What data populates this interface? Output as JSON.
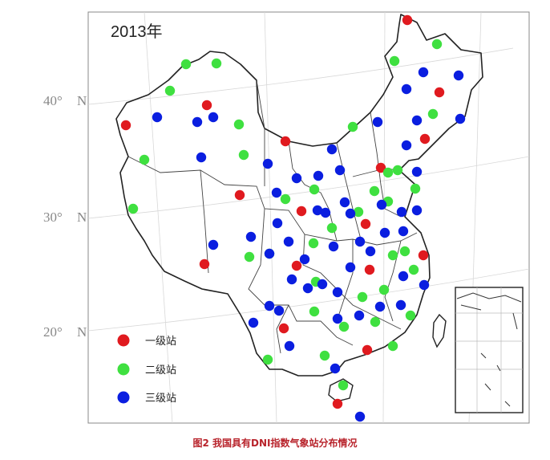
{
  "map": {
    "year_label": "2013年",
    "lat_labels": [
      {
        "deg": "40°",
        "dir": "N"
      },
      {
        "deg": "30°",
        "dir": "N"
      },
      {
        "deg": "20°",
        "dir": "N"
      }
    ],
    "legend": [
      {
        "label": "一级站",
        "color": "#e01a1f"
      },
      {
        "label": "二级站",
        "color": "#3fe040"
      },
      {
        "label": "三级站",
        "color": "#0a1ee0"
      }
    ],
    "stations": {
      "level1": [
        [
          508,
          25
        ],
        [
          548,
          115
        ],
        [
          530,
          173
        ],
        [
          258,
          131
        ],
        [
          157,
          156
        ],
        [
          356,
          176
        ],
        [
          299,
          243
        ],
        [
          376,
          263
        ],
        [
          456,
          279
        ],
        [
          475,
          209
        ],
        [
          528,
          318
        ],
        [
          461,
          336
        ],
        [
          370,
          331
        ],
        [
          255,
          329
        ],
        [
          354,
          409
        ],
        [
          458,
          436
        ],
        [
          421,
          503
        ]
      ],
      "level2": [
        [
          232,
          80
        ],
        [
          270,
          79
        ],
        [
          212,
          113
        ],
        [
          180,
          199
        ],
        [
          166,
          260
        ],
        [
          298,
          155
        ],
        [
          304,
          193
        ],
        [
          356,
          248
        ],
        [
          392,
          236
        ],
        [
          440,
          158
        ],
        [
          492,
          76
        ],
        [
          545,
          55
        ],
        [
          540,
          142
        ],
        [
          496,
          212
        ],
        [
          518,
          235
        ],
        [
          484,
          215
        ],
        [
          467,
          238
        ],
        [
          484,
          251
        ],
        [
          447,
          264
        ],
        [
          414,
          284
        ],
        [
          391,
          303
        ],
        [
          311,
          320
        ],
        [
          336,
          316
        ],
        [
          490,
          318
        ],
        [
          505,
          313
        ],
        [
          516,
          336
        ],
        [
          479,
          361
        ],
        [
          452,
          370
        ],
        [
          394,
          351
        ],
        [
          392,
          388
        ],
        [
          429,
          407
        ],
        [
          468,
          401
        ],
        [
          512,
          393
        ],
        [
          490,
          431
        ],
        [
          405,
          443
        ],
        [
          334,
          448
        ],
        [
          428,
          480
        ]
      ],
      "level3": [
        [
          196,
          146
        ],
        [
          246,
          152
        ],
        [
          266,
          146
        ],
        [
          251,
          196
        ],
        [
          334,
          204
        ],
        [
          345,
          240
        ],
        [
          370,
          222
        ],
        [
          397,
          219
        ],
        [
          424,
          212
        ],
        [
          414,
          186
        ],
        [
          471,
          152
        ],
        [
          520,
          150
        ],
        [
          507,
          111
        ],
        [
          528,
          90
        ],
        [
          572,
          94
        ],
        [
          574,
          148
        ],
        [
          507,
          181
        ],
        [
          520,
          214
        ],
        [
          501,
          264
        ],
        [
          476,
          255
        ],
        [
          437,
          266
        ],
        [
          406,
          265
        ],
        [
          396,
          262
        ],
        [
          430,
          252
        ],
        [
          346,
          278
        ],
        [
          336,
          316
        ],
        [
          360,
          301
        ],
        [
          313,
          295
        ],
        [
          266,
          305
        ],
        [
          380,
          323
        ],
        [
          364,
          348
        ],
        [
          384,
          359
        ],
        [
          402,
          354
        ],
        [
          421,
          364
        ],
        [
          437,
          333
        ],
        [
          416,
          307
        ],
        [
          449,
          301
        ],
        [
          462,
          313
        ],
        [
          480,
          290
        ],
        [
          503,
          288
        ],
        [
          520,
          262
        ],
        [
          529,
          355
        ],
        [
          503,
          344
        ],
        [
          500,
          380
        ],
        [
          474,
          382
        ],
        [
          448,
          393
        ],
        [
          421,
          397
        ],
        [
          336,
          381
        ],
        [
          348,
          387
        ],
        [
          316,
          402
        ],
        [
          361,
          431
        ],
        [
          418,
          459
        ],
        [
          449,
          519
        ]
      ]
    }
  },
  "caption": "图2 我国具有DNI指数气象站分布情况"
}
